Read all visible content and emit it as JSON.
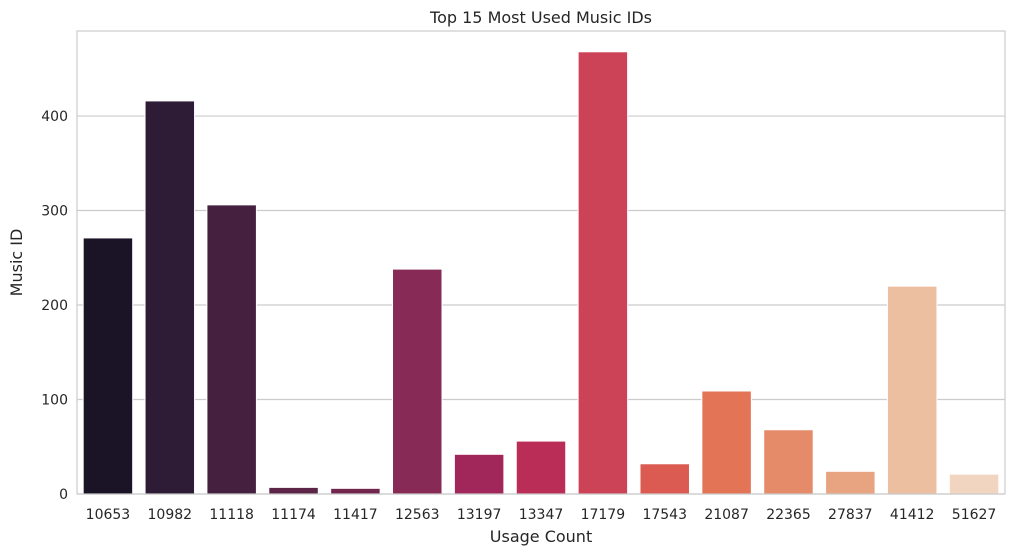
{
  "chart_data": {
    "type": "bar",
    "title": "Top 15 Most Used Music IDs",
    "xlabel": "Usage Count",
    "ylabel": "Music ID",
    "categories": [
      "10653",
      "10982",
      "11118",
      "11174",
      "11417",
      "12563",
      "13197",
      "13347",
      "17179",
      "17543",
      "21087",
      "22365",
      "27837",
      "41412",
      "51627"
    ],
    "values": [
      271,
      416,
      306,
      7,
      6,
      238,
      42,
      56,
      468,
      32,
      109,
      68,
      24,
      220,
      21
    ],
    "colors": [
      "#1a1426",
      "#2e1b36",
      "#45213f",
      "#5c2446",
      "#73264d",
      "#882a56",
      "#a1265a",
      "#b92d56",
      "#cc4256",
      "#db5b53",
      "#e37456",
      "#e68b6a",
      "#e8a381",
      "#ecbfa1",
      "#f2d5c1"
    ],
    "ylim": [
      0,
      490
    ],
    "yticks": [
      0,
      100,
      200,
      300,
      400
    ],
    "grid": true,
    "legend": "none"
  }
}
